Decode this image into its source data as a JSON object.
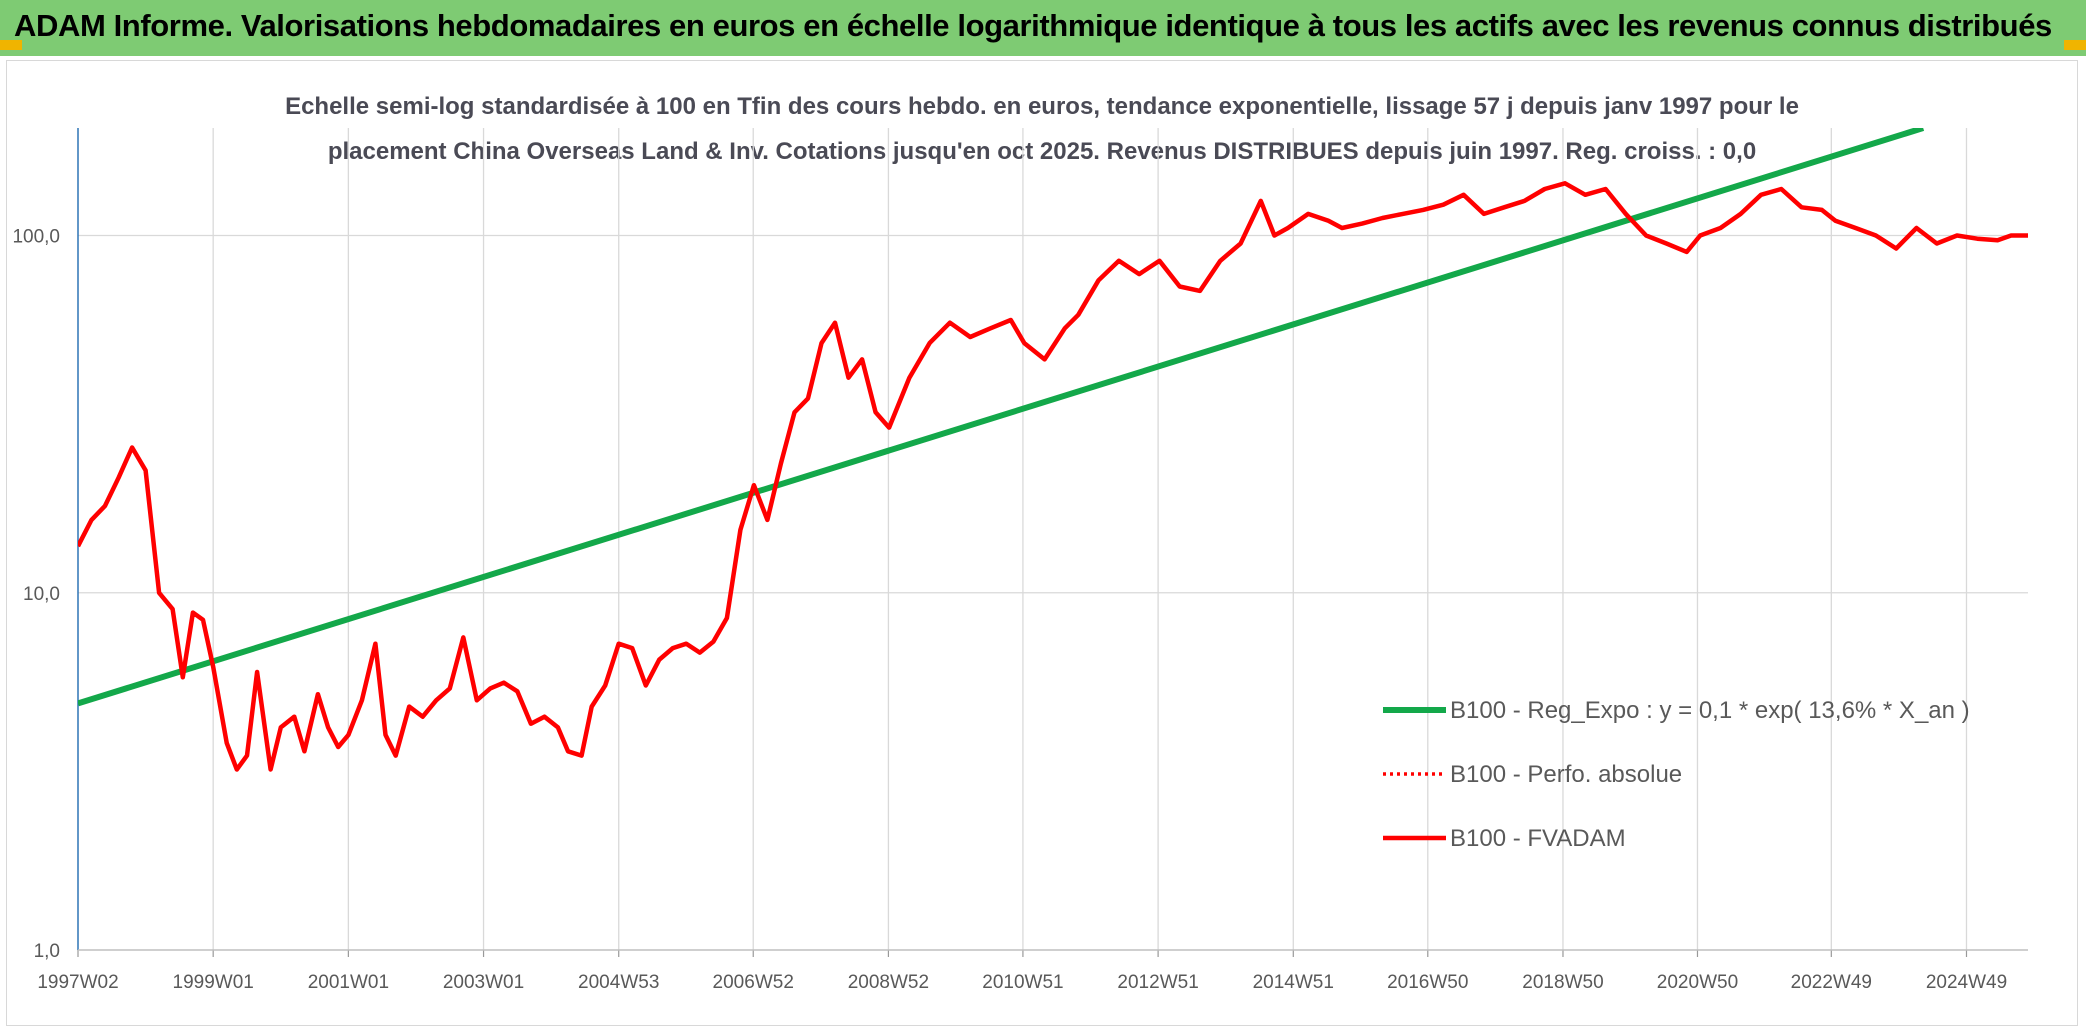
{
  "header": {
    "title": "ADAM Informe. Valorisations hebdomadaires en euros en échelle logarithmique identique à tous les actifs avec les revenus connus distribués"
  },
  "colors": {
    "header_bg": "#7ecb73",
    "trend": "#13a84a",
    "fvadam": "#ff0000",
    "perfo": "#ff0000",
    "axis": "#2e75b6",
    "grid": "#d9d9d9",
    "accent": "#f0b400"
  },
  "chart_data": {
    "type": "line",
    "title": "Echelle semi-log standardisée à 100 en Tfin des cours hebdo. en euros, tendance exponentielle, lissage 57 j depuis janv 1997 pour le placement China Overseas Land & Inv. Cotations jusqu'en oct 2025. Revenus DISTRIBUES depuis juin 1997. Reg. croiss. : 0,0",
    "title_lines": [
      "Echelle semi-log standardisée à 100 en Tfin des cours hebdo. en euros, tendance exponentielle, lissage 57 j depuis janv 1997 pour le",
      "placement China Overseas Land & Inv. Cotations jusqu'en oct 2025. Revenus DISTRIBUES depuis juin 1997. Reg. croiss. : 0,0"
    ],
    "y_scale": "log",
    "ylim": [
      1,
      200
    ],
    "xlim": [
      1997.0,
      2025.85
    ],
    "y_ticks": [
      1,
      10,
      100
    ],
    "y_tick_labels": [
      "1,0",
      "10,0",
      "100,0"
    ],
    "x_ticks": [
      1997.0,
      1999.0,
      2001.0,
      2003.0,
      2005.0,
      2006.99,
      2008.99,
      2010.98,
      2012.98,
      2014.98,
      2016.97,
      2018.97,
      2020.96,
      2022.94,
      2024.94
    ],
    "x_tick_labels": [
      "1997W02",
      "1999W01",
      "2001W01",
      "2003W01",
      "2004W53",
      "2006W52",
      "2008W52",
      "2010W51",
      "2012W51",
      "2014W51",
      "2016W50",
      "2018W50",
      "2020W50",
      "2022W49",
      "2024W49"
    ],
    "legend_position": "right",
    "series": [
      {
        "name": "B100 - Reg_Expo : y = 0,1 * exp( 13,6% *  X_an )",
        "style": "solid-thick",
        "x": [
          1997.0,
          2024.3
        ],
        "y": [
          4.9,
          200
        ]
      },
      {
        "name": "B100 - Perfo. absolue",
        "style": "dotted",
        "x": [],
        "y": []
      },
      {
        "name": "B100 - FVADAM",
        "style": "solid",
        "x": [
          1997.0,
          1997.2,
          1997.4,
          1997.6,
          1997.8,
          1998.0,
          1998.2,
          1998.4,
          1998.55,
          1998.7,
          1998.85,
          1999.0,
          1999.2,
          1999.35,
          1999.5,
          1999.65,
          1999.85,
          2000.0,
          2000.2,
          2000.35,
          2000.55,
          2000.7,
          2000.85,
          2001.0,
          2001.2,
          2001.4,
          2001.55,
          2001.7,
          2001.9,
          2002.1,
          2002.3,
          2002.5,
          2002.7,
          2002.9,
          2003.1,
          2003.3,
          2003.5,
          2003.7,
          2003.9,
          2004.1,
          2004.25,
          2004.45,
          2004.6,
          2004.8,
          2005.0,
          2005.2,
          2005.4,
          2005.6,
          2005.8,
          2006.0,
          2006.2,
          2006.4,
          2006.6,
          2006.8,
          2007.0,
          2007.2,
          2007.4,
          2007.6,
          2007.8,
          2008.0,
          2008.2,
          2008.4,
          2008.6,
          2008.8,
          2009.0,
          2009.3,
          2009.6,
          2009.9,
          2010.2,
          2010.5,
          2010.8,
          2011.0,
          2011.3,
          2011.6,
          2011.8,
          2012.1,
          2012.4,
          2012.7,
          2013.0,
          2013.3,
          2013.6,
          2013.9,
          2014.2,
          2014.5,
          2014.7,
          2014.9,
          2015.2,
          2015.5,
          2015.7,
          2016.0,
          2016.3,
          2016.6,
          2016.9,
          2017.2,
          2017.5,
          2017.8,
          2018.1,
          2018.4,
          2018.7,
          2019.0,
          2019.3,
          2019.6,
          2019.9,
          2020.2,
          2020.5,
          2020.8,
          2021.0,
          2021.3,
          2021.6,
          2021.9,
          2022.2,
          2022.5,
          2022.8,
          2023.0,
          2023.3,
          2023.6,
          2023.9,
          2024.2,
          2024.5,
          2024.8,
          2025.1,
          2025.4,
          2025.6,
          2025.85
        ],
        "y": [
          13.5,
          16.0,
          17.5,
          21.0,
          25.5,
          22.0,
          10.0,
          9.0,
          5.8,
          8.8,
          8.4,
          6.2,
          3.8,
          3.2,
          3.5,
          6.0,
          3.2,
          4.2,
          4.5,
          3.6,
          5.2,
          4.2,
          3.7,
          4.0,
          5.0,
          7.2,
          4.0,
          3.5,
          4.8,
          4.5,
          5.0,
          5.4,
          7.5,
          5.0,
          5.4,
          5.6,
          5.3,
          4.3,
          4.5,
          4.2,
          3.6,
          3.5,
          4.8,
          5.5,
          7.2,
          7.0,
          5.5,
          6.5,
          7.0,
          7.2,
          6.8,
          7.3,
          8.5,
          15.0,
          20.0,
          16.0,
          23.0,
          32.0,
          35.0,
          50.0,
          57.0,
          40.0,
          45.0,
          32.0,
          29.0,
          40.0,
          50.0,
          57.0,
          52.0,
          55.0,
          58.0,
          50.0,
          45.0,
          55.0,
          60.0,
          75.0,
          85.0,
          78.0,
          85.0,
          72.0,
          70.0,
          85.0,
          95.0,
          125.0,
          100.0,
          105.0,
          115.0,
          110.0,
          105.0,
          108.0,
          112.0,
          115.0,
          118.0,
          122.0,
          130.0,
          115.0,
          120.0,
          125.0,
          135.0,
          140.0,
          130.0,
          135.0,
          115.0,
          100.0,
          95.0,
          90.0,
          100.0,
          105.0,
          115.0,
          130.0,
          135.0,
          120.0,
          118.0,
          110.0,
          105.0,
          100.0,
          92.0,
          105.0,
          95.0,
          100.0,
          98.0,
          97.0,
          100.0,
          100.0
        ]
      }
    ]
  }
}
